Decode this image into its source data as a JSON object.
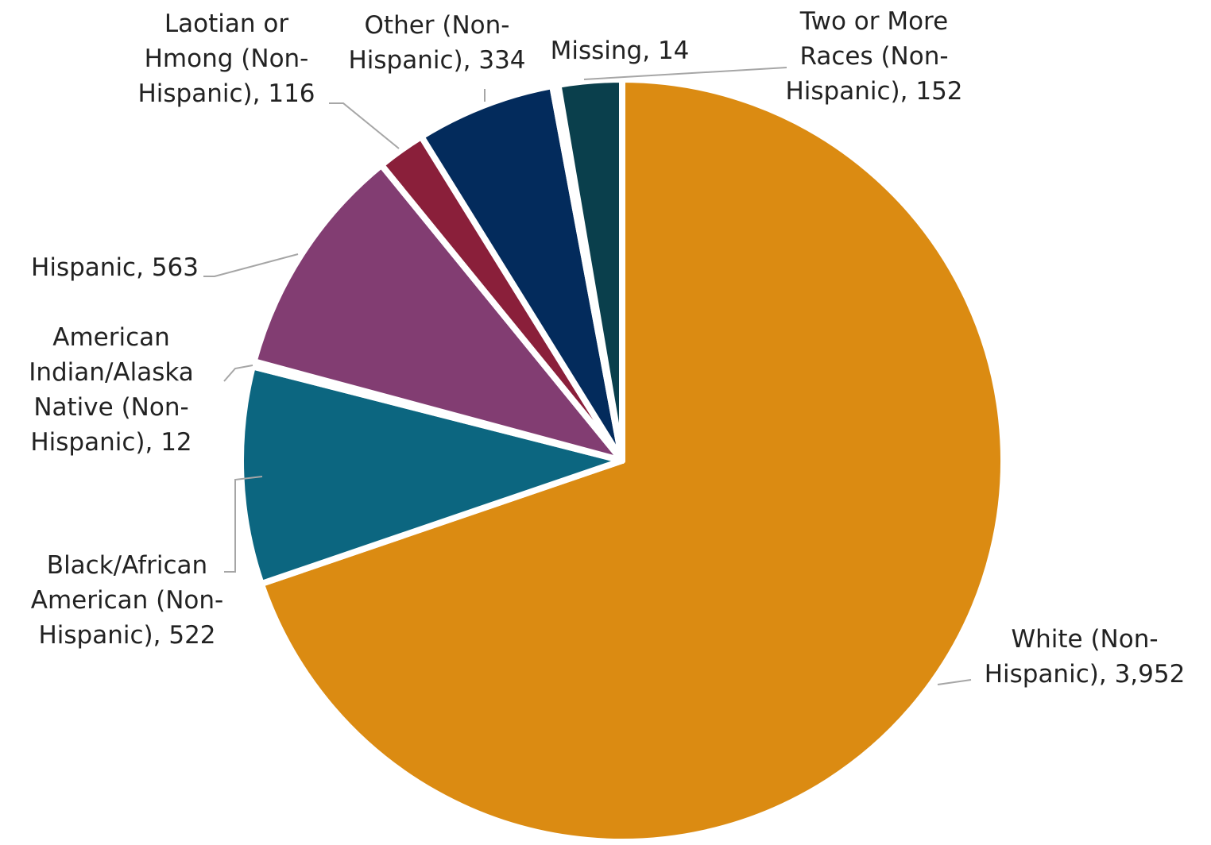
{
  "chart_data": {
    "type": "pie",
    "categories": [
      "White (Non-Hispanic)",
      "Black/African American (Non-Hispanic)",
      "American Indian/Alaska Native (Non-Hispanic)",
      "Hispanic",
      "Laotian or Hmong (Non-Hispanic)",
      "Other (Non-Hispanic)",
      "Missing",
      "Two or More Races (Non-Hispanic)"
    ],
    "values": [
      3952,
      522,
      12,
      563,
      116,
      334,
      14,
      152
    ],
    "value_labels": [
      "3,952",
      "522",
      "12",
      "563",
      "116",
      "334",
      "14",
      "152"
    ],
    "label_separator": ", ",
    "colors": [
      "#db8b12",
      "#0c6680",
      "#2e6b3a",
      "#823d72",
      "#8a1f3a",
      "#032b5c",
      "#5a5a5a",
      "#0a3f4c"
    ]
  }
}
